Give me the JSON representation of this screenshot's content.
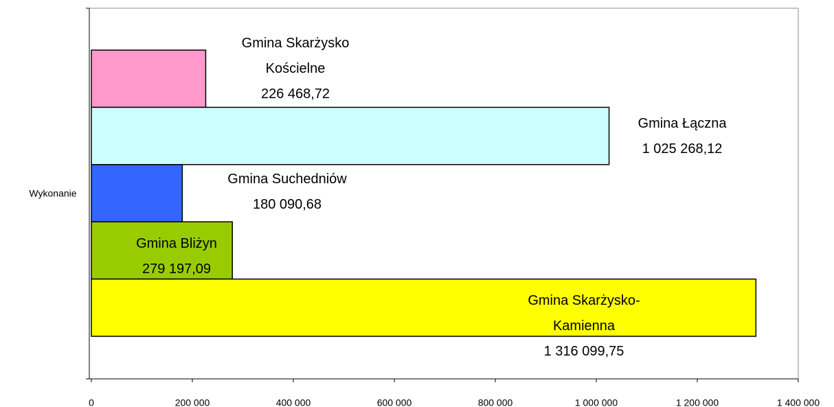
{
  "chart_data": {
    "type": "hbar",
    "categories": [
      "Wykonanie"
    ],
    "series": [
      {
        "name": "Gmina Skarżysko Kościelne",
        "color": "#ff99cc",
        "values": [
          226468.72
        ],
        "value_labels": [
          "226 468,72"
        ]
      },
      {
        "name": "Gmina Łączna",
        "color": "#ccffff",
        "values": [
          1025268.12
        ],
        "value_labels": [
          "1 025 268,12"
        ]
      },
      {
        "name": "Gmina Suchedniów",
        "color": "#3366ff",
        "values": [
          180090.68
        ],
        "value_labels": [
          "180 090,68"
        ]
      },
      {
        "name": "Gmina Bliżyn",
        "color": "#99cc00",
        "values": [
          279197.09
        ],
        "value_labels": [
          "279 197,09"
        ]
      },
      {
        "name": "Gmina Skarżysko-Kamienna",
        "color": "#ffff00",
        "values": [
          1316099.75
        ],
        "value_labels": [
          "1 316 099,75"
        ]
      }
    ],
    "xlim": [
      0,
      1400000
    ],
    "xticks": [
      0,
      {
        "value": 200000,
        "label": "200 000"
      },
      {
        "value": 400000,
        "label": "400 000"
      },
      {
        "value": 600000,
        "label": "600 000"
      },
      {
        "value": 800000,
        "label": "800 000"
      },
      {
        "value": 1000000,
        "label": "1 000 000"
      },
      {
        "value": 1200000,
        "label": "1 200 000"
      },
      {
        "value": 1400000,
        "label": "1 400 000"
      }
    ]
  }
}
